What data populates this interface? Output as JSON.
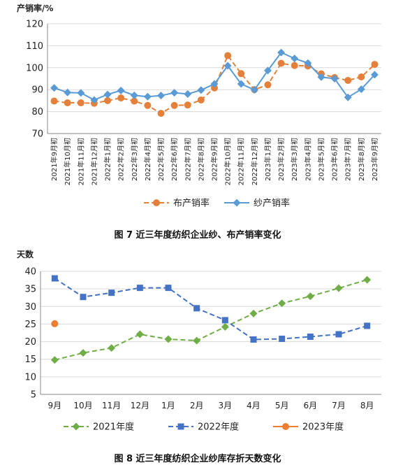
{
  "chart_data": [
    {
      "type": "line",
      "ylabel": "产销率/%",
      "ylim": [
        70,
        120
      ],
      "yticks": [
        70,
        80,
        90,
        100,
        110,
        120
      ],
      "grid": true,
      "legend_position": "bottom",
      "categories": [
        "2021年9月初",
        "2021年10月初",
        "2021年11月初",
        "2021年12月初",
        "2022年1月初",
        "2022年2月初",
        "2022年3月初",
        "2022年4月初",
        "2022年5月初",
        "2022年6月初",
        "2022年7月初",
        "2022年8月初",
        "2022年9月初",
        "2022年10月初",
        "2022年11月初",
        "2022年12月初",
        "2023年1月初",
        "2023年2月初",
        "2023年3月初",
        "2023年4月初",
        "2023年5月初",
        "2023年6月初",
        "2023年7月初",
        "2023年8月初",
        "2023年9月初"
      ],
      "series": [
        {
          "name": "布产销率",
          "color": "#E5803A",
          "style": "dashed",
          "marker": "circle",
          "values": [
            84.8,
            84.0,
            84.0,
            83.8,
            85.0,
            86.2,
            84.8,
            82.8,
            79.2,
            82.8,
            83.0,
            85.3,
            90.8,
            105.5,
            97.3,
            90.0,
            92.2,
            102.0,
            101.0,
            100.8,
            97.2,
            95.5,
            94.2,
            95.8,
            101.5
          ]
        },
        {
          "name": "纱产销率",
          "color": "#5B9BD5",
          "style": "solid",
          "marker": "diamond",
          "values": [
            90.8,
            88.7,
            88.5,
            85.3,
            87.8,
            89.6,
            87.4,
            86.8,
            87.3,
            88.6,
            88.0,
            89.8,
            92.6,
            100.9,
            92.6,
            89.9,
            98.7,
            106.9,
            104.2,
            102.1,
            95.7,
            95.0,
            86.5,
            90.2,
            96.8
          ]
        }
      ],
      "caption": "图 7   近三年度纺织企业纱、布产销率变化"
    },
    {
      "type": "line",
      "ylabel": "天数",
      "ylim": [
        5,
        40
      ],
      "yticks": [
        5,
        10,
        15,
        20,
        25,
        30,
        35,
        40
      ],
      "grid": true,
      "legend_position": "bottom",
      "categories": [
        "9月",
        "10月",
        "11月",
        "12月",
        "1月",
        "2月",
        "3月",
        "4月",
        "5月",
        "6月",
        "7月",
        "8月"
      ],
      "series": [
        {
          "name": "2021年度",
          "color": "#70AD47",
          "style": "dashed",
          "marker": "diamond",
          "values": [
            14.8,
            16.8,
            18.2,
            22.1,
            20.7,
            20.3,
            24.2,
            28.0,
            30.9,
            32.9,
            35.2,
            37.6
          ]
        },
        {
          "name": "2022年度",
          "color": "#4472C4",
          "style": "dashed",
          "marker": "square",
          "values": [
            38.0,
            32.7,
            33.9,
            35.3,
            35.3,
            29.5,
            26.1,
            20.6,
            20.8,
            21.4,
            22.1,
            24.5
          ]
        },
        {
          "name": "2023年度",
          "color": "#ED7D31",
          "style": "solid",
          "marker": "circle",
          "values": [
            25.1,
            null,
            null,
            null,
            null,
            null,
            null,
            null,
            null,
            null,
            null,
            null
          ]
        }
      ],
      "caption": "图 8   近三年度纺织企业纱库存折天数变化"
    }
  ]
}
